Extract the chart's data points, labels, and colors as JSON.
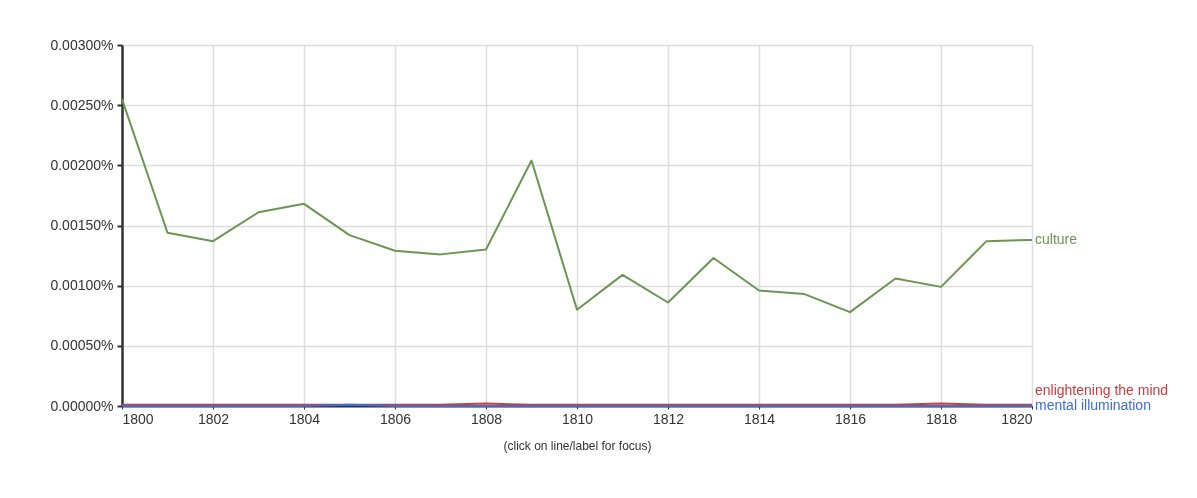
{
  "chart_data": {
    "type": "line",
    "x": [
      1800,
      1801,
      1802,
      1803,
      1804,
      1805,
      1806,
      1807,
      1808,
      1809,
      1810,
      1811,
      1812,
      1813,
      1814,
      1815,
      1816,
      1817,
      1818,
      1819,
      1820
    ],
    "series": [
      {
        "name": "culture",
        "color": "#6b9652",
        "values": [
          0.00255,
          0.00144,
          0.00137,
          0.00161,
          0.00168,
          0.00142,
          0.00129,
          0.00126,
          0.0013,
          0.00204,
          0.0008,
          0.00109,
          0.00086,
          0.00123,
          0.00096,
          0.00093,
          0.00078,
          0.00106,
          0.00099,
          0.00137,
          0.00138
        ]
      },
      {
        "name": "enlightening the mind",
        "color": "#d03a3a",
        "values": [
          1e-05,
          1e-05,
          1e-05,
          1e-05,
          1e-05,
          1e-05,
          1e-05,
          1e-05,
          2e-05,
          1e-05,
          1e-05,
          1e-05,
          1e-05,
          1e-05,
          1e-05,
          1e-05,
          1e-05,
          1e-05,
          2e-05,
          1e-05,
          1e-05
        ]
      },
      {
        "name": "mental illumination",
        "color": "#3e6bd6",
        "values": [
          0,
          0,
          0,
          0,
          0,
          1e-05,
          0,
          0,
          0,
          0,
          0,
          0,
          0,
          0,
          0,
          0,
          0,
          0,
          0,
          0,
          0
        ]
      }
    ],
    "xlabel": "(click on line/label for focus)",
    "xlim": [
      1800,
      1820
    ],
    "xticks": [
      1800,
      1802,
      1804,
      1806,
      1808,
      1810,
      1812,
      1814,
      1816,
      1818,
      1820
    ],
    "ylim": [
      0,
      0.003
    ],
    "yticks": [
      {
        "value": 0,
        "label": "0.00000%"
      },
      {
        "value": 0.0005,
        "label": "0.00050%"
      },
      {
        "value": 0.001,
        "label": "0.00100%"
      },
      {
        "value": 0.0015,
        "label": "0.00150%"
      },
      {
        "value": 0.002,
        "label": "0.00200%"
      },
      {
        "value": 0.0025,
        "label": "0.00250%"
      },
      {
        "value": 0.003,
        "label": "0.00300%"
      }
    ],
    "grid": true,
    "line_style": "solid"
  }
}
